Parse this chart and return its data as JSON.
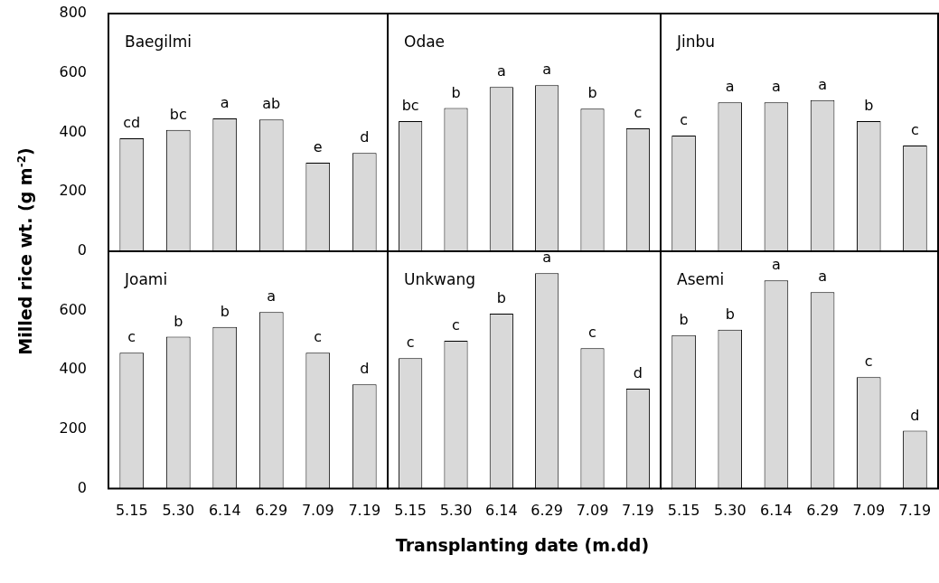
{
  "chart_data": [
    {
      "type": "bar",
      "title": "Baegilmi",
      "ylabel": "Milled rice wt. (g m$^{-2}$)",
      "categories": [
        "5.15",
        "5.30",
        "6.14",
        "6.29",
        "7.09",
        "7.19"
      ],
      "values": [
        380,
        408,
        447,
        443,
        298,
        331
      ],
      "value_labels": [
        "cd",
        "bc",
        "a",
        "ab",
        "e",
        "d"
      ],
      "color": "#d9d9d9",
      "ylim": [
        0,
        800
      ],
      "yticks": [
        0,
        200,
        400,
        600,
        800
      ],
      "tick_labels": "y"
    },
    {
      "type": "bar",
      "title": "Odae",
      "categories": [
        "5.15",
        "5.30",
        "6.14",
        "6.29",
        "7.09",
        "7.19"
      ],
      "values": [
        438,
        482,
        553,
        559,
        480,
        414
      ],
      "value_labels": [
        "bc",
        "b",
        "a",
        "a",
        "b",
        "c"
      ],
      "color": "#d9d9d9",
      "ylim": [
        0,
        800
      ],
      "yticks": [
        0,
        200,
        400,
        600,
        800
      ],
      "tick_labels": false
    },
    {
      "type": "bar",
      "title": "Jinbu",
      "categories": [
        "5.15",
        "5.30",
        "6.14",
        "6.29",
        "7.09",
        "7.19"
      ],
      "values": [
        389,
        501,
        501,
        509,
        438,
        356
      ],
      "value_labels": [
        "c",
        "a",
        "a",
        "a",
        "b",
        "c"
      ],
      "color": "#d9d9d9",
      "ylim": [
        0,
        800
      ],
      "yticks": [
        0,
        200,
        400,
        600,
        800
      ],
      "tick_labels": false
    },
    {
      "type": "bar",
      "title": "Joami",
      "categories": [
        "5.15",
        "5.30",
        "6.14",
        "6.29",
        "7.09",
        "7.19"
      ],
      "values": [
        458,
        512,
        545,
        595,
        458,
        351
      ],
      "value_labels": [
        "c",
        "b",
        "b",
        "a",
        "c",
        "d"
      ],
      "color": "#d9d9d9",
      "ylim": [
        0,
        800
      ],
      "yticks": [
        0,
        200,
        400,
        600
      ]
    },
    {
      "type": "bar",
      "title": "Unkwang",
      "xlabel": "Transplanting date (m.dd)",
      "categories": [
        "5.15",
        "5.30",
        "6.14",
        "6.29",
        "7.09",
        "7.19"
      ],
      "values": [
        440,
        498,
        590,
        726,
        473,
        337
      ],
      "value_labels": [
        "c",
        "c",
        "b",
        "a",
        "c",
        "d"
      ],
      "color": "#d9d9d9",
      "ylim": [
        0,
        800
      ],
      "yticks": [
        0,
        200,
        400,
        600,
        800
      ],
      "tick_labels": "x"
    },
    {
      "type": "bar",
      "title": "Asemi",
      "categories": [
        "5.15",
        "5.30",
        "6.14",
        "6.29",
        "7.09",
        "7.19"
      ],
      "values": [
        517,
        536,
        702,
        662,
        376,
        195
      ],
      "value_labels": [
        "b",
        "b",
        "a",
        "a",
        "c",
        "d"
      ],
      "color": "#d9d9d9",
      "ylim": [
        0,
        800
      ],
      "yticks": [
        0,
        200,
        400,
        600,
        800
      ],
      "tick_labels": "x"
    }
  ]
}
